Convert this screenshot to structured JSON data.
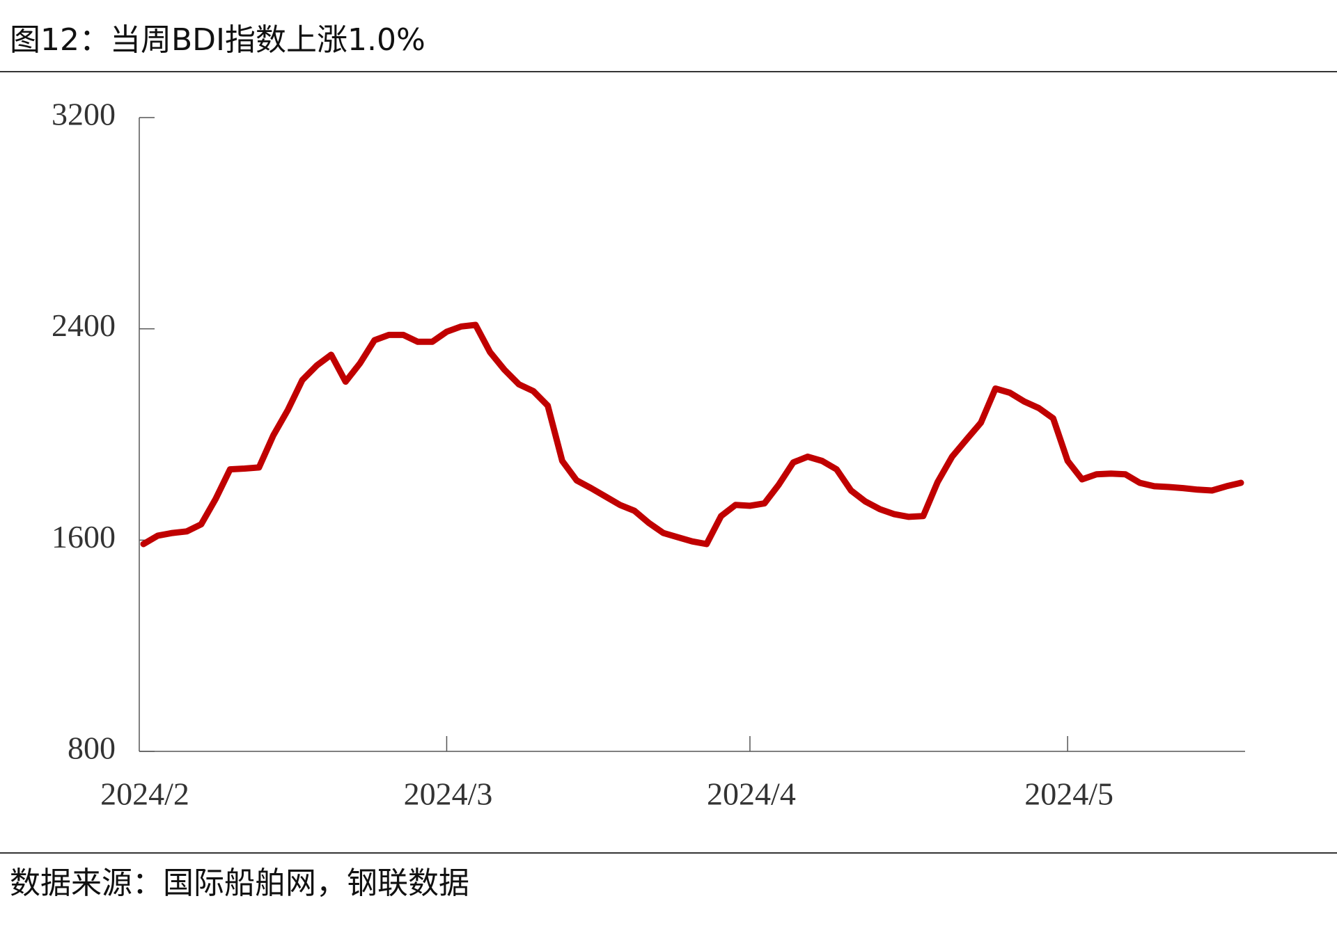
{
  "chart_data": {
    "type": "line",
    "title": "图12：当周BDI指数上涨1.0%",
    "source": "数据来源：国际船舶网，钢联数据",
    "categories": [
      "2024/2",
      null,
      null,
      null,
      null,
      null,
      null,
      null,
      null,
      null,
      null,
      null,
      null,
      null,
      null,
      null,
      null,
      null,
      null,
      null,
      null,
      "2024/3",
      null,
      null,
      null,
      null,
      null,
      null,
      null,
      null,
      null,
      null,
      null,
      null,
      null,
      null,
      null,
      null,
      null,
      null,
      null,
      null,
      "2024/4",
      null,
      null,
      null,
      null,
      null,
      null,
      null,
      null,
      null,
      null,
      null,
      null,
      null,
      null,
      null,
      null,
      null,
      null,
      null,
      null,
      null,
      "2024/5",
      null,
      null,
      null,
      null,
      null,
      null,
      null,
      null,
      null,
      null,
      null,
      null
    ],
    "series": [
      {
        "name": "BDI",
        "color": "#c00000",
        "values": [
          1585,
          1617,
          1627,
          1633,
          1660,
          1756,
          1868,
          1871,
          1875,
          1997,
          2093,
          2206,
          2261,
          2302,
          2200,
          2270,
          2357,
          2377,
          2377,
          2351,
          2351,
          2389,
          2409,
          2415,
          2312,
          2245,
          2190,
          2164,
          2109,
          1900,
          1826,
          1797,
          1765,
          1733,
          1711,
          1665,
          1627,
          1611,
          1595,
          1585,
          1691,
          1733,
          1730,
          1739,
          1810,
          1894,
          1916,
          1900,
          1868,
          1788,
          1746,
          1717,
          1698,
          1688,
          1691,
          1820,
          1916,
          1981,
          2045,
          2174,
          2158,
          2125,
          2100,
          2061,
          1900,
          1830,
          1849,
          1852,
          1849,
          1817,
          1804,
          1801,
          1797,
          1791,
          1788,
          1804,
          1817
        ]
      }
    ],
    "ylim": [
      800,
      3200
    ],
    "yticks": [
      800,
      1600,
      2400,
      3200
    ],
    "grid": false
  }
}
